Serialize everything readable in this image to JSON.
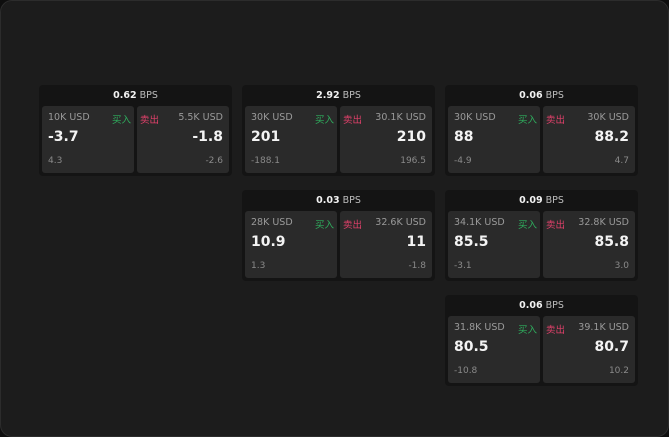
{
  "unit": "BPS",
  "buy_label": "买入",
  "sell_label": "卖出",
  "colors": {
    "buy": "#2fae5e",
    "sell": "#e0406a"
  },
  "cards": [
    {
      "spread": "0.62",
      "buy": {
        "amount": "10K USD",
        "price": "-3.7",
        "change": "4.3"
      },
      "sell": {
        "amount": "5.5K USD",
        "price": "-1.8",
        "change": "-2.6"
      }
    },
    {
      "spread": "2.92",
      "buy": {
        "amount": "30K USD",
        "price": "201",
        "change": "-188.1"
      },
      "sell": {
        "amount": "30.1K USD",
        "price": "210",
        "change": "196.5"
      }
    },
    {
      "spread": "0.06",
      "buy": {
        "amount": "30K USD",
        "price": "88",
        "change": "-4.9"
      },
      "sell": {
        "amount": "30K USD",
        "price": "88.2",
        "change": "4.7"
      }
    },
    {
      "spread": "0.03",
      "buy": {
        "amount": "28K USD",
        "price": "10.9",
        "change": "1.3"
      },
      "sell": {
        "amount": "32.6K USD",
        "price": "11",
        "change": "-1.8"
      }
    },
    {
      "spread": "0.09",
      "buy": {
        "amount": "34.1K USD",
        "price": "85.5",
        "change": "-3.1"
      },
      "sell": {
        "amount": "32.8K USD",
        "price": "85.8",
        "change": "3.0"
      }
    },
    {
      "spread": "0.06",
      "buy": {
        "amount": "31.8K USD",
        "price": "80.5",
        "change": "-10.8"
      },
      "sell": {
        "amount": "39.1K USD",
        "price": "80.7",
        "change": "10.2"
      }
    }
  ]
}
